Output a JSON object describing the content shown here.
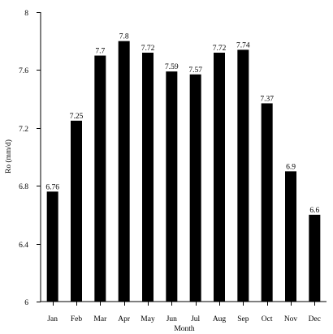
{
  "chart_data": {
    "type": "bar",
    "title": "",
    "xlabel": "Month",
    "ylabel": "Ro (mm/d)",
    "categories": [
      "Jan",
      "Feb",
      "Mar",
      "Apr",
      "May",
      "Jun",
      "Jul",
      "Aug",
      "Sep",
      "Oct",
      "Nov",
      "Dec"
    ],
    "values": [
      6.76,
      7.25,
      7.7,
      7.8,
      7.72,
      7.59,
      7.57,
      7.72,
      7.74,
      7.37,
      6.9,
      6.6
    ],
    "value_labels": [
      "6.76",
      "7.25",
      "7.7",
      "7.8",
      "7.72",
      "7.59",
      "7.57",
      "7.72",
      "7.74",
      "7.37",
      "6.9",
      "6.6"
    ],
    "ylim": [
      6,
      8
    ],
    "yticks": [
      6,
      6.4,
      6.8,
      7.2,
      7.6,
      8
    ],
    "ytick_labels": [
      "6",
      "6.4",
      "6.8",
      "7.2",
      "7.6",
      "8"
    ],
    "grid": false,
    "legend": "none",
    "bar_color": "#000000"
  }
}
